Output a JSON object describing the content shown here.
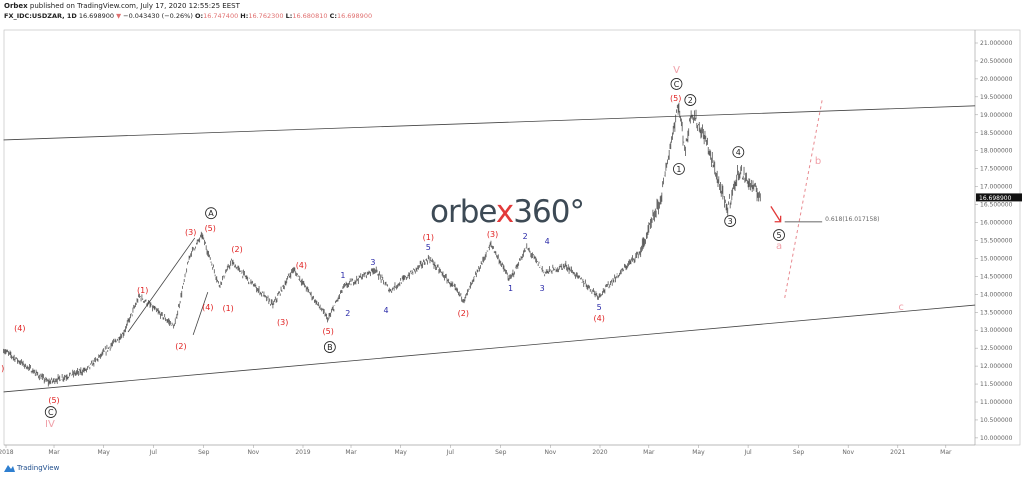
{
  "header": {
    "publisher": "Orbex",
    "published_text": "published on TradingView.com, July 17, 2020 12:55:25 EEST",
    "symbol": "FX_IDC:USDZAR, 1D",
    "last": "16.698900",
    "change": "−0.043430 (−0.26%)",
    "open_label": "O:",
    "open": "16.747400",
    "high_label": "H:",
    "high": "16.762300",
    "low_label": "L:",
    "low": "16.680810",
    "close_label": "C:",
    "close": "16.698900"
  },
  "logo": {
    "text_a": "orbe",
    "text_x": "x",
    "text_b": "360°"
  },
  "footer": {
    "brand": "TradingView"
  },
  "colors": {
    "wave_red": "#e02020",
    "wave_blue": "#2a2aa8",
    "wave_pink": "#f0a0a8",
    "price": "#555555",
    "down": "#e23a3a"
  },
  "chart_data": {
    "type": "line",
    "style": "bars",
    "symbol": "USDZAR",
    "ylim": [
      10.0,
      21.0
    ],
    "xlim": [
      "2017-12-28",
      "2021-04-28"
    ],
    "y_ticks": [
      "21.000000",
      "20.500000",
      "20.000000",
      "19.500000",
      "19.000000",
      "18.500000",
      "18.000000",
      "17.500000",
      "17.000000",
      "16.500000",
      "16.000000",
      "15.500000",
      "15.000000",
      "14.500000",
      "14.000000",
      "13.500000",
      "13.000000",
      "12.500000",
      "12.000000",
      "11.500000",
      "11.000000",
      "10.500000",
      "10.000000"
    ],
    "x_ticks": [
      {
        "label": "2018",
        "date": "2018-01-01"
      },
      {
        "label": "Mar",
        "date": "2018-03-01"
      },
      {
        "label": "May",
        "date": "2018-05-01"
      },
      {
        "label": "Jul",
        "date": "2018-07-01"
      },
      {
        "label": "Sep",
        "date": "2018-09-01"
      },
      {
        "label": "Nov",
        "date": "2018-11-01"
      },
      {
        "label": "2019",
        "date": "2019-01-01"
      },
      {
        "label": "Mar",
        "date": "2019-03-01"
      },
      {
        "label": "May",
        "date": "2019-05-01"
      },
      {
        "label": "Jul",
        "date": "2019-07-01"
      },
      {
        "label": "Sep",
        "date": "2019-09-01"
      },
      {
        "label": "Nov",
        "date": "2019-11-01"
      },
      {
        "label": "2020",
        "date": "2020-01-01"
      },
      {
        "label": "Mar",
        "date": "2020-03-01"
      },
      {
        "label": "May",
        "date": "2020-05-01"
      },
      {
        "label": "Jul",
        "date": "2020-07-01"
      },
      {
        "label": "Sep",
        "date": "2020-09-01"
      },
      {
        "label": "Nov",
        "date": "2020-11-01"
      },
      {
        "label": "2021",
        "date": "2021-01-01"
      },
      {
        "label": "Mar",
        "date": "2021-03-01"
      }
    ],
    "last_price_label": "16.698900",
    "last_price": 16.6989,
    "pivots": [
      [
        "2017-12-29",
        12.45
      ],
      [
        "2018-02-22",
        11.55
      ],
      [
        "2018-04-10",
        11.9
      ],
      [
        "2018-05-25",
        12.9
      ],
      [
        "2018-06-14",
        13.95
      ],
      [
        "2018-07-27",
        13.1
      ],
      [
        "2018-08-15",
        15.1
      ],
      [
        "2018-08-30",
        15.65
      ],
      [
        "2018-09-20",
        14.25
      ],
      [
        "2018-10-05",
        14.9
      ],
      [
        "2018-11-25",
        13.7
      ],
      [
        "2018-12-20",
        14.7
      ],
      [
        "2019-02-01",
        13.3
      ],
      [
        "2019-02-20",
        14.2
      ],
      [
        "2019-03-30",
        14.7
      ],
      [
        "2019-04-18",
        14.1
      ],
      [
        "2019-06-05",
        15.0
      ],
      [
        "2019-07-18",
        13.85
      ],
      [
        "2019-08-20",
        15.4
      ],
      [
        "2019-09-12",
        14.4
      ],
      [
        "2019-10-03",
        15.3
      ],
      [
        "2019-10-25",
        14.6
      ],
      [
        "2019-11-20",
        14.8
      ],
      [
        "2019-12-30",
        13.95
      ],
      [
        "2020-02-20",
        15.2
      ],
      [
        "2020-03-15",
        16.6
      ],
      [
        "2020-04-06",
        19.3
      ],
      [
        "2020-04-15",
        18.0
      ],
      [
        "2020-04-22",
        19.1
      ],
      [
        "2020-05-10",
        18.3
      ],
      [
        "2020-06-05",
        16.35
      ],
      [
        "2020-06-20",
        17.45
      ],
      [
        "2020-07-17",
        16.7
      ]
    ],
    "trendlines": [
      {
        "from": [
          "2017-12-29",
          18.3
        ],
        "to": [
          "2021-04-06",
          19.25
        ],
        "style": "solid"
      },
      {
        "from": [
          "2017-12-29",
          11.28
        ],
        "to": [
          "2021-04-06",
          13.7
        ],
        "style": "solid"
      },
      {
        "from": [
          "2018-05-31",
          12.95
        ],
        "to": [
          "2018-08-21",
          15.57
        ],
        "style": "solid"
      },
      {
        "from": [
          "2018-08-19",
          12.87
        ],
        "to": [
          "2018-09-06",
          14.06
        ],
        "style": "solid"
      },
      {
        "from": [
          "2020-08-15",
          13.9
        ],
        "to": [
          "2020-09-30",
          19.41
        ],
        "style": "dashed-pink"
      }
    ],
    "fib": {
      "from": "2020-08-15",
      "to": "2020-09-30",
      "price": 16.017158,
      "label": "0.618(16.017158)"
    },
    "arrow": {
      "from": [
        "2020-07-29",
        16.45
      ],
      "to": [
        "2020-08-10",
        16.02
      ]
    },
    "annotations": [
      {
        "t": "(4)",
        "d": "2018-01-18",
        "p": 13.06,
        "c": "red"
      },
      {
        "t": ")",
        "d": "2017-12-28",
        "p": 11.95,
        "c": "red"
      },
      {
        "t": "(5)",
        "d": "2018-03-01",
        "p": 11.06,
        "c": "red"
      },
      {
        "t": "C",
        "d": "2018-02-25",
        "p": 10.72,
        "c": "circle"
      },
      {
        "t": "IV",
        "d": "2018-02-24",
        "p": 10.39,
        "c": "pink"
      },
      {
        "t": "(1)",
        "d": "2018-06-18",
        "p": 14.12,
        "c": "red"
      },
      {
        "t": "(3)",
        "d": "2018-08-16",
        "p": 15.74,
        "c": "red"
      },
      {
        "t": "(5)",
        "d": "2018-09-09",
        "p": 15.85,
        "c": "red"
      },
      {
        "t": "A",
        "d": "2018-09-10",
        "p": 16.26,
        "c": "circle"
      },
      {
        "t": "(2)",
        "d": "2018-08-04",
        "p": 12.56,
        "c": "red"
      },
      {
        "t": "(4)",
        "d": "2018-09-06",
        "p": 13.65,
        "c": "red"
      },
      {
        "t": "(1)",
        "d": "2018-10-01",
        "p": 13.62,
        "c": "red"
      },
      {
        "t": "(2)",
        "d": "2018-10-12",
        "p": 15.26,
        "c": "red"
      },
      {
        "t": "(3)",
        "d": "2018-12-07",
        "p": 13.23,
        "c": "red"
      },
      {
        "t": "(4)",
        "d": "2018-12-30",
        "p": 14.82,
        "c": "red"
      },
      {
        "t": "(5)",
        "d": "2019-02-01",
        "p": 12.98,
        "c": "red"
      },
      {
        "t": "B",
        "d": "2019-02-03",
        "p": 12.53,
        "c": "circle"
      },
      {
        "t": "1",
        "d": "2019-02-19",
        "p": 14.54,
        "c": "blue"
      },
      {
        "t": "2",
        "d": "2019-02-25",
        "p": 13.48,
        "c": "blue"
      },
      {
        "t": "3",
        "d": "2019-03-28",
        "p": 14.9,
        "c": "blue"
      },
      {
        "t": "4",
        "d": "2019-04-13",
        "p": 13.56,
        "c": "blue"
      },
      {
        "t": "(1)",
        "d": "2019-06-04",
        "p": 15.6,
        "c": "red"
      },
      {
        "t": "5",
        "d": "2019-06-04",
        "p": 15.32,
        "c": "blue"
      },
      {
        "t": "(2)",
        "d": "2019-07-17",
        "p": 13.48,
        "c": "red"
      },
      {
        "t": "(3)",
        "d": "2019-08-22",
        "p": 15.68,
        "c": "red"
      },
      {
        "t": "2",
        "d": "2019-10-01",
        "p": 15.62,
        "c": "blue"
      },
      {
        "t": "1",
        "d": "2019-09-13",
        "p": 14.18,
        "c": "blue"
      },
      {
        "t": "4",
        "d": "2019-10-28",
        "p": 15.48,
        "c": "blue"
      },
      {
        "t": "3",
        "d": "2019-10-22",
        "p": 14.18,
        "c": "blue"
      },
      {
        "t": "5",
        "d": "2019-12-31",
        "p": 13.65,
        "c": "blue"
      },
      {
        "t": "(4)",
        "d": "2019-12-31",
        "p": 13.34,
        "c": "red"
      },
      {
        "t": "V",
        "d": "2020-04-04",
        "p": 20.25,
        "c": "pink"
      },
      {
        "t": "C",
        "d": "2020-04-04",
        "p": 19.86,
        "c": "circle"
      },
      {
        "t": "(5)",
        "d": "2020-04-03",
        "p": 19.47,
        "c": "red"
      },
      {
        "t": "2",
        "d": "2020-04-21",
        "p": 19.41,
        "c": "circle"
      },
      {
        "t": "1",
        "d": "2020-04-07",
        "p": 17.49,
        "c": "circle"
      },
      {
        "t": "4",
        "d": "2020-06-19",
        "p": 17.96,
        "c": "circle"
      },
      {
        "t": "3",
        "d": "2020-06-09",
        "p": 16.04,
        "c": "circle"
      },
      {
        "t": "5",
        "d": "2020-08-08",
        "p": 15.65,
        "c": "circle"
      },
      {
        "t": "a",
        "d": "2020-08-08",
        "p": 15.35,
        "c": "pink"
      },
      {
        "t": "b",
        "d": "2020-09-25",
        "p": 17.71,
        "c": "pink"
      },
      {
        "t": "c",
        "d": "2021-01-05",
        "p": 13.65,
        "c": "pink"
      }
    ]
  }
}
